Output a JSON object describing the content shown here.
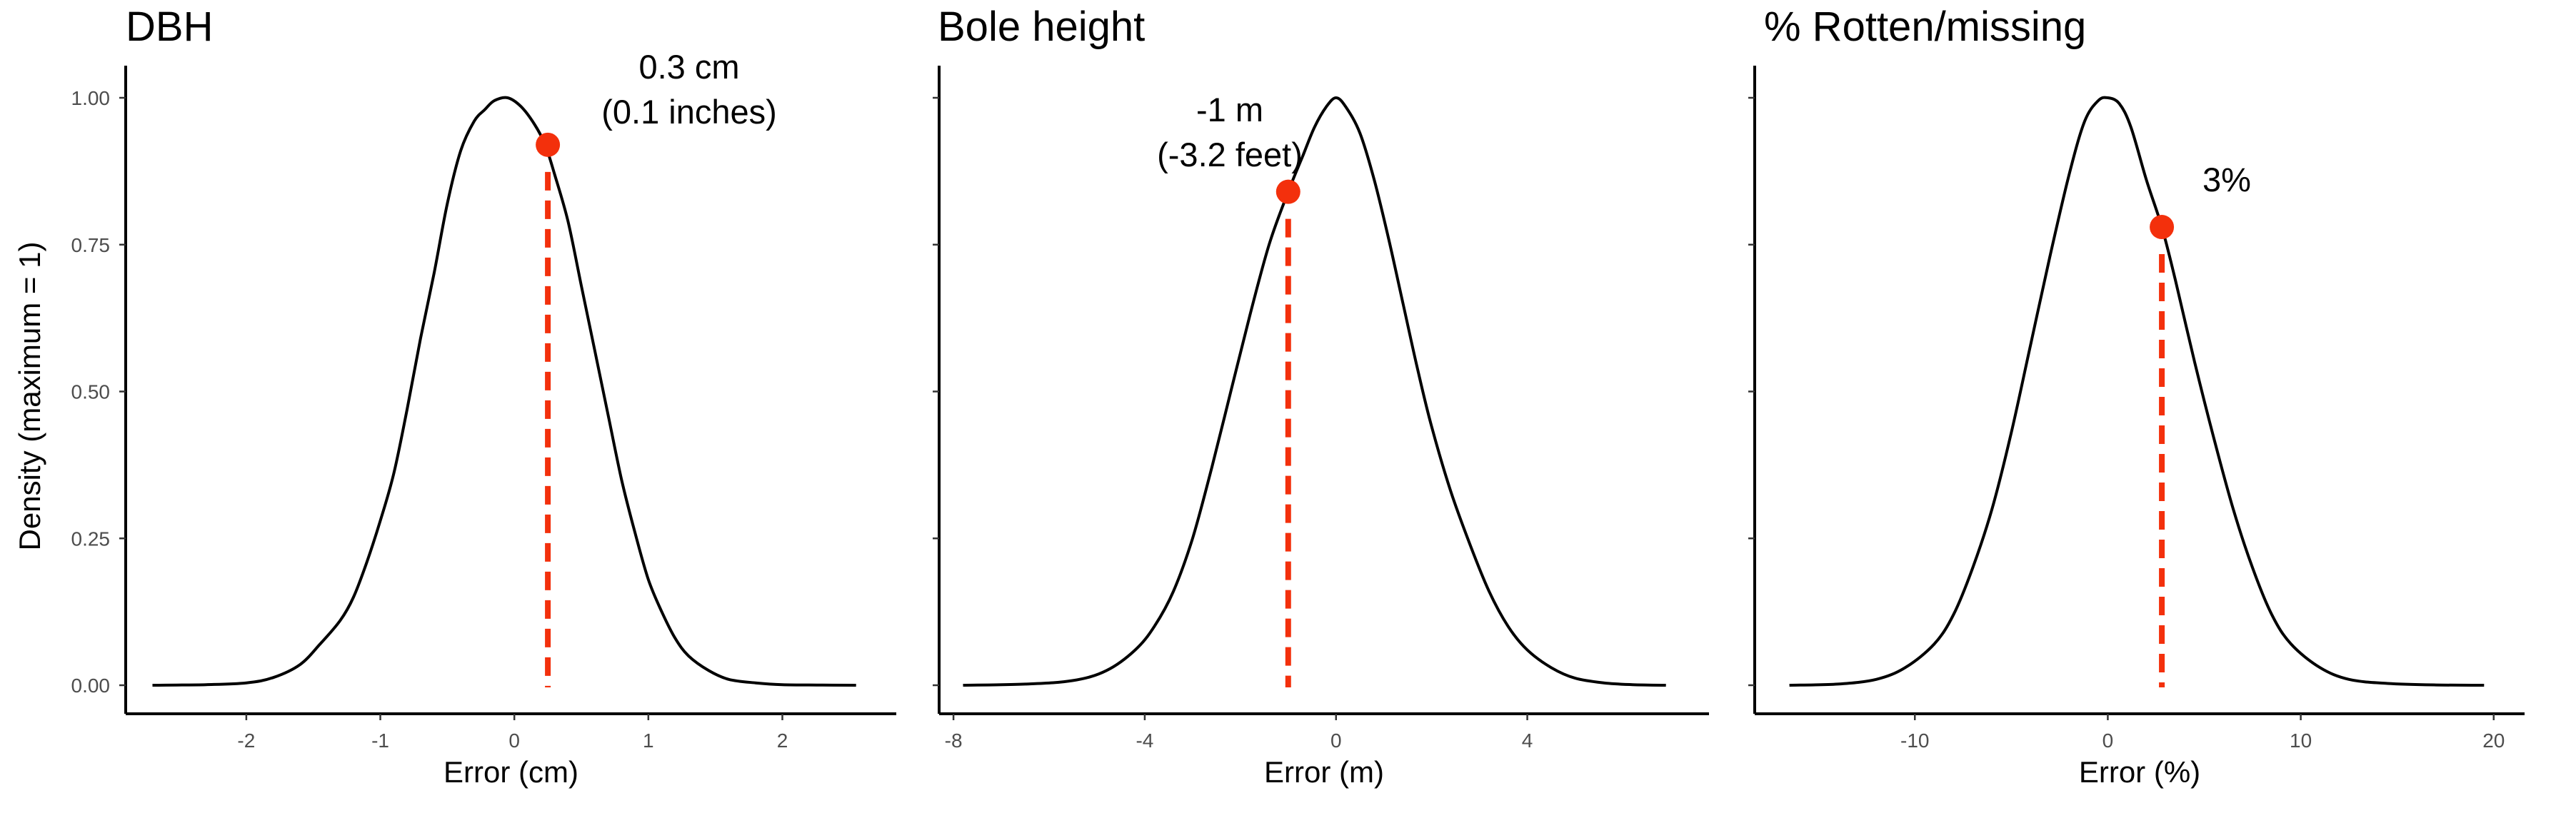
{
  "chart_data": {
    "type": "line",
    "y_axis_title": "Density (maximum = 1)",
    "y_ticks": [
      0,
      0.25,
      0.5,
      0.75,
      1
    ],
    "y_tick_labels": [
      "0.00",
      "0.25",
      "0.50",
      "0.75",
      "1.00"
    ],
    "ylim": [
      0,
      1
    ],
    "grid": false,
    "highlight_color": "#f3300c",
    "curve_color": "#000000",
    "panels": [
      {
        "title": "DBH",
        "xlabel": "Error (cm)",
        "xlim": [
          -2.9,
          2.85
        ],
        "x_ticks": [
          -2,
          -1,
          0,
          1,
          2
        ],
        "x_tick_labels": [
          "-2",
          "-1",
          "0",
          "1",
          "2"
        ],
        "curve": {
          "x": [
            -2.7,
            -2.3,
            -2.0,
            -1.8,
            -1.6,
            -1.45,
            -1.3,
            -1.2,
            -1.1,
            -1.0,
            -0.9,
            -0.8,
            -0.7,
            -0.6,
            -0.5,
            -0.4,
            -0.3,
            -0.22,
            -0.15,
            -0.05,
            0.05,
            0.15,
            0.23,
            0.3,
            0.4,
            0.5,
            0.6,
            0.7,
            0.8,
            0.9,
            1.0,
            1.1,
            1.2,
            1.3,
            1.45,
            1.6,
            1.8,
            2.0,
            2.3,
            2.55
          ],
          "y": [
            0.0,
            0.001,
            0.004,
            0.013,
            0.035,
            0.07,
            0.11,
            0.15,
            0.21,
            0.28,
            0.36,
            0.47,
            0.59,
            0.7,
            0.82,
            0.91,
            0.96,
            0.98,
            0.995,
            1.0,
            0.985,
            0.955,
            0.92,
            0.87,
            0.79,
            0.68,
            0.57,
            0.46,
            0.35,
            0.26,
            0.18,
            0.125,
            0.08,
            0.05,
            0.025,
            0.01,
            0.004,
            0.001,
            0.0003,
            0.0
          ]
        },
        "marker": {
          "x": 0.25,
          "y": 0.92
        },
        "annotation": [
          "0.3 cm",
          "(0.1 inches)"
        ]
      },
      {
        "title": "Bole height",
        "xlabel": "Error (m)",
        "xlim": [
          -8.3,
          7.8
        ],
        "x_ticks": [
          -8,
          -4,
          0,
          4
        ],
        "x_tick_labels": [
          "-8",
          "-4",
          "0",
          "4"
        ],
        "curve": {
          "x": [
            -7.8,
            -6.5,
            -5.5,
            -4.8,
            -4.2,
            -3.8,
            -3.4,
            -3.0,
            -2.6,
            -2.2,
            -1.8,
            -1.4,
            -1.0,
            -0.7,
            -0.45,
            -0.2,
            0.0,
            0.2,
            0.5,
            0.8,
            1.1,
            1.4,
            1.7,
            2.0,
            2.4,
            2.8,
            3.2,
            3.6,
            4.0,
            4.5,
            5.0,
            5.6,
            6.2,
            6.9
          ],
          "y": [
            0.0,
            0.002,
            0.008,
            0.025,
            0.06,
            0.1,
            0.16,
            0.25,
            0.37,
            0.5,
            0.63,
            0.75,
            0.84,
            0.9,
            0.95,
            0.985,
            1.0,
            0.985,
            0.94,
            0.86,
            0.76,
            0.65,
            0.54,
            0.44,
            0.33,
            0.24,
            0.16,
            0.1,
            0.06,
            0.03,
            0.012,
            0.004,
            0.001,
            0.0
          ]
        },
        "marker": {
          "x": -1.0,
          "y": 0.84
        },
        "annotation": [
          "-1 m",
          "(-3.2 feet)"
        ]
      },
      {
        "title": "% Rotten/missing",
        "xlabel": "Error (%)",
        "xlim": [
          -18.3,
          21.6
        ],
        "x_ticks": [
          -10,
          0,
          10,
          20
        ],
        "x_tick_labels": [
          "-10",
          "0",
          "10",
          "20"
        ],
        "curve": {
          "x": [
            -16.5,
            -14.0,
            -12.0,
            -10.5,
            -9.0,
            -8.0,
            -7.0,
            -6.0,
            -5.0,
            -4.0,
            -3.0,
            -2.0,
            -1.2,
            -0.5,
            0.0,
            0.6,
            1.2,
            2.0,
            2.8,
            3.5,
            4.5,
            5.5,
            6.5,
            7.5,
            8.5,
            9.5,
            11.0,
            12.5,
            14.5,
            17.0,
            19.5
          ],
          "y": [
            0.0,
            0.002,
            0.01,
            0.03,
            0.07,
            0.12,
            0.2,
            0.3,
            0.43,
            0.58,
            0.73,
            0.87,
            0.96,
            0.995,
            1.0,
            0.99,
            0.95,
            0.86,
            0.78,
            0.69,
            0.55,
            0.42,
            0.3,
            0.2,
            0.12,
            0.07,
            0.03,
            0.01,
            0.003,
            0.0005,
            0.0
          ]
        },
        "marker": {
          "x": 2.8,
          "y": 0.78
        },
        "annotation": [
          "3%"
        ]
      }
    ]
  }
}
